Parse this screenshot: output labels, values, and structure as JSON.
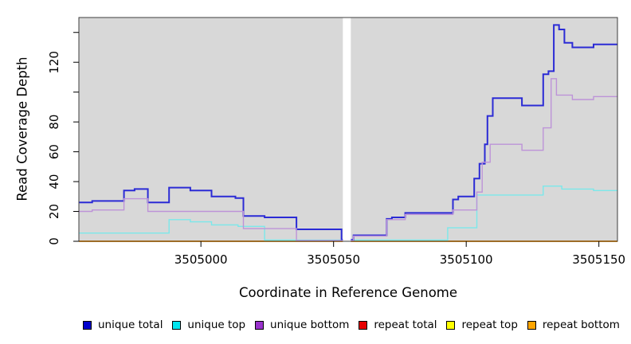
{
  "figure": {
    "background": "#FFFFFF",
    "plot_background": "#D8D8D8",
    "border_color": "#3C3C3C",
    "gap_band_color": "#FFFFFF"
  },
  "chart_data": {
    "type": "line",
    "subtype": "step-after",
    "title": "",
    "xlabel": "Coordinate in Reference Genome",
    "ylabel": "Read Coverage Depth",
    "xlim": [
      3504954,
      3505157
    ],
    "ylim": [
      0,
      150
    ],
    "grid": false,
    "legend_position": "bottom",
    "xticks": [
      {
        "v": 3505000,
        "label": "3505000"
      },
      {
        "v": 3505050,
        "label": "3505050"
      },
      {
        "v": 3505100,
        "label": "3505100"
      },
      {
        "v": 3505150,
        "label": "3505150"
      }
    ],
    "yticks": [
      {
        "v": 0,
        "label": "0"
      },
      {
        "v": 20,
        "label": "20"
      },
      {
        "v": 40,
        "label": "40"
      },
      {
        "v": 60,
        "label": "60"
      },
      {
        "v": 80,
        "label": "80"
      },
      {
        "v": 100,
        "label": ""
      },
      {
        "v": 120,
        "label": "120"
      },
      {
        "v": 140,
        "label": ""
      }
    ],
    "gap": {
      "x0": 3505053.5,
      "x1": 3505056.5
    },
    "series": [
      {
        "name": "unique total",
        "color": "#0000CC",
        "line": "#2B2BD5",
        "steps": [
          [
            3504954,
            26
          ],
          [
            3504959,
            27
          ],
          [
            3504971,
            34
          ],
          [
            3504975,
            35
          ],
          [
            3504980,
            26
          ],
          [
            3504988,
            36
          ],
          [
            3504996,
            34
          ],
          [
            3505004,
            30
          ],
          [
            3505013,
            29
          ],
          [
            3505016,
            17
          ],
          [
            3505024,
            16
          ],
          [
            3505036,
            8
          ],
          [
            3505053,
            1
          ],
          [
            3505057.5,
            4
          ],
          [
            3505070,
            15
          ],
          [
            3505072,
            16
          ],
          [
            3505077,
            19
          ],
          [
            3505095,
            28
          ],
          [
            3505097,
            30
          ],
          [
            3505103,
            42
          ],
          [
            3505105,
            52
          ],
          [
            3505107,
            65
          ],
          [
            3505108,
            84
          ],
          [
            3505110,
            96
          ],
          [
            3505121,
            91
          ],
          [
            3505129,
            112
          ],
          [
            3505131,
            114
          ],
          [
            3505133,
            145
          ],
          [
            3505135,
            142
          ],
          [
            3505137,
            133
          ],
          [
            3505140,
            130
          ],
          [
            3505148,
            132
          ]
        ]
      },
      {
        "name": "unique top",
        "color": "#00E5EE",
        "line": "#7BE8EA",
        "steps": [
          [
            3504954,
            5.5
          ],
          [
            3504988,
            14.5
          ],
          [
            3504996,
            13
          ],
          [
            3505004,
            11
          ],
          [
            3505014,
            10
          ],
          [
            3505024,
            0.8
          ],
          [
            3505093,
            9
          ],
          [
            3505104,
            31
          ],
          [
            3505129,
            37
          ],
          [
            3505136,
            35
          ],
          [
            3505148,
            34
          ]
        ]
      },
      {
        "name": "unique bottom",
        "color": "#9932CC",
        "line": "#BD93D8",
        "steps": [
          [
            3504954,
            20
          ],
          [
            3504959,
            21
          ],
          [
            3504971,
            28.5
          ],
          [
            3504980,
            20
          ],
          [
            3505016,
            8.5
          ],
          [
            3505036,
            0.5
          ],
          [
            3505057.5,
            3.5
          ],
          [
            3505070,
            14.5
          ],
          [
            3505077,
            18
          ],
          [
            3505095,
            21
          ],
          [
            3505104,
            33
          ],
          [
            3505106,
            53
          ],
          [
            3505109,
            65
          ],
          [
            3505121,
            61
          ],
          [
            3505129,
            76
          ],
          [
            3505132,
            109
          ],
          [
            3505134,
            98
          ],
          [
            3505140,
            95
          ],
          [
            3505148,
            97
          ]
        ]
      },
      {
        "name": "repeat total",
        "color": "#E60000",
        "line": "#E60000",
        "steps": [
          [
            3504954,
            0
          ]
        ]
      },
      {
        "name": "repeat top",
        "color": "#FFFF00",
        "line": "#FFFF00",
        "steps": [
          [
            3504954,
            0
          ]
        ]
      },
      {
        "name": "repeat bottom",
        "color": "#FFA500",
        "line": "#FF9E14",
        "steps": [
          [
            3504954,
            0
          ]
        ]
      }
    ]
  }
}
